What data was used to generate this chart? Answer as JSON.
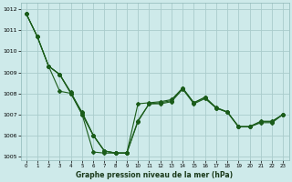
{
  "title": "Graphe pression niveau de la mer (hPa)",
  "background_color": "#ceeaea",
  "grid_color": "#aacccc",
  "line_color": "#1a5c1a",
  "xlim": [
    -0.5,
    23.5
  ],
  "ylim": [
    1004.8,
    1012.3
  ],
  "yticks": [
    1005,
    1006,
    1007,
    1008,
    1009,
    1010,
    1011,
    1012
  ],
  "xticks": [
    0,
    1,
    2,
    3,
    4,
    5,
    6,
    7,
    8,
    9,
    10,
    11,
    12,
    13,
    14,
    15,
    16,
    17,
    18,
    19,
    20,
    21,
    22,
    23
  ],
  "lines": [
    {
      "x": [
        0,
        1,
        2,
        3,
        4,
        5,
        6,
        7,
        8,
        9
      ],
      "y": [
        1011.8,
        1010.7,
        1009.3,
        1008.1,
        1008.0,
        1007.0,
        1005.2,
        1005.15,
        1005.15,
        1005.15
      ]
    },
    {
      "x": [
        0,
        1,
        2,
        3,
        4,
        5,
        6,
        7,
        8,
        9,
        10,
        11,
        12,
        13,
        14,
        15,
        16,
        17,
        18,
        19,
        20,
        21,
        22,
        23
      ],
      "y": [
        1011.8,
        1010.7,
        1009.3,
        1008.9,
        1008.0,
        1007.1,
        1006.0,
        1005.25,
        1005.15,
        1005.15,
        1006.65,
        1007.5,
        1007.5,
        1007.6,
        1008.2,
        1007.5,
        1007.75,
        1007.3,
        1007.1,
        1006.4,
        1006.4,
        1006.6,
        1006.6,
        1007.0
      ]
    },
    {
      "x": [
        0,
        1,
        2,
        3,
        4,
        5,
        6,
        7,
        8,
        9,
        10,
        11,
        12,
        13,
        14,
        15,
        16,
        17,
        18,
        19,
        20,
        21,
        22,
        23
      ],
      "y": [
        1011.8,
        1010.7,
        1009.3,
        1008.9,
        1008.05,
        1007.05,
        1006.0,
        1005.25,
        1005.15,
        1005.15,
        1006.7,
        1007.5,
        1007.55,
        1007.65,
        1008.25,
        1007.55,
        1007.8,
        1007.3,
        1007.1,
        1006.4,
        1006.4,
        1006.65,
        1006.65,
        1007.0
      ]
    },
    {
      "x": [
        2,
        3,
        4,
        5,
        6,
        7,
        8,
        9,
        10,
        11,
        12,
        13,
        14,
        15,
        16,
        17,
        18,
        19,
        20,
        21,
        22,
        23
      ],
      "y": [
        1009.3,
        1008.9,
        1008.0,
        1007.0,
        1006.0,
        1005.25,
        1005.15,
        1005.15,
        1007.5,
        1007.55,
        1007.6,
        1007.7,
        1008.25,
        1007.55,
        1007.82,
        1007.32,
        1007.12,
        1006.42,
        1006.42,
        1006.67,
        1006.67,
        1007.0
      ]
    }
  ]
}
